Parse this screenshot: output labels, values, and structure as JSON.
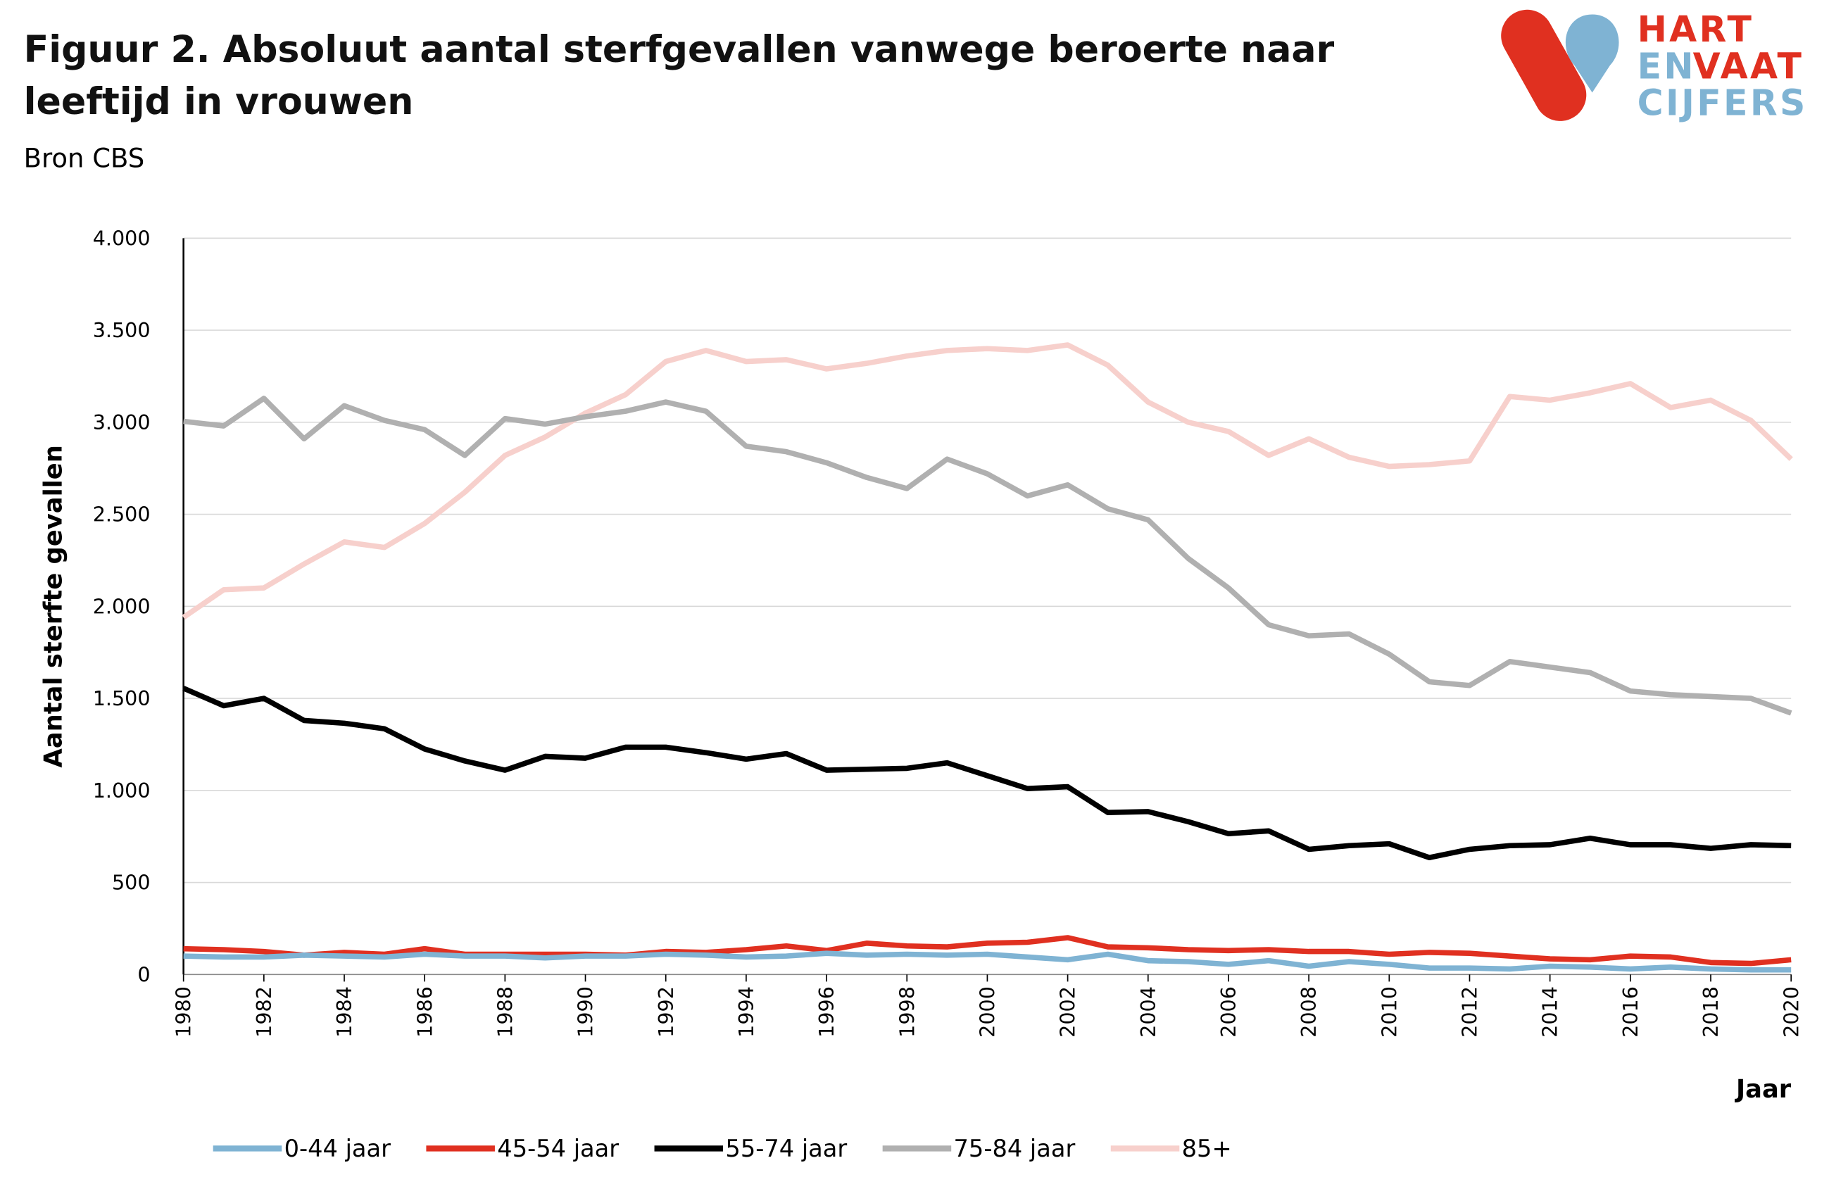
{
  "chart_data": {
    "type": "line",
    "title": "Figuur 2. Absoluut aantal sterfgevallen vanwege beroerte naar leeftijd in vrouwen",
    "subtitle": "Bron CBS",
    "ylabel": "Aantal sterfte gevallen",
    "xlabel": "Jaar",
    "logo": [
      "HART",
      "EN",
      "VAAT",
      "CIJFERS"
    ],
    "x": [
      1980,
      1981,
      1982,
      1983,
      1984,
      1985,
      1986,
      1987,
      1988,
      1989,
      1990,
      1991,
      1992,
      1993,
      1994,
      1995,
      1996,
      1997,
      1998,
      1999,
      2000,
      2001,
      2002,
      2003,
      2004,
      2005,
      2006,
      2007,
      2008,
      2009,
      2010,
      2011,
      2012,
      2013,
      2014,
      2015,
      2016,
      2017,
      2018,
      2019,
      2020
    ],
    "xlim": [
      1980,
      2020
    ],
    "xticks": [
      1980,
      1982,
      1984,
      1986,
      1988,
      1990,
      1992,
      1994,
      1996,
      1998,
      2000,
      2002,
      2004,
      2006,
      2008,
      2010,
      2012,
      2014,
      2016,
      2018,
      2020
    ],
    "ylim": [
      0,
      4000
    ],
    "yticks": [
      0,
      500,
      {
        "value": 1000,
        "label": "1.000"
      },
      {
        "value": 1500,
        "label": "1.500"
      },
      {
        "value": 2000,
        "label": "2.000"
      },
      {
        "value": 2500,
        "label": "2.500"
      },
      {
        "value": 3000,
        "label": "3.000"
      },
      {
        "value": 3500,
        "label": "3.500"
      },
      {
        "value": 4000,
        "label": "4.000"
      }
    ],
    "grid": true,
    "legend": "bottom",
    "series": [
      {
        "name": "0-44 jaar",
        "color": "#7fb3d3",
        "values": [
          100,
          95,
          95,
          105,
          100,
          95,
          110,
          100,
          100,
          90,
          100,
          100,
          110,
          105,
          95,
          100,
          115,
          105,
          110,
          105,
          110,
          95,
          80,
          110,
          75,
          70,
          55,
          75,
          45,
          70,
          55,
          35,
          35,
          30,
          45,
          40,
          30,
          40,
          30,
          25,
          25
        ]
      },
      {
        "name": "45-54 jaar",
        "color": "#e03020",
        "values": [
          140,
          135,
          125,
          105,
          120,
          110,
          140,
          110,
          110,
          110,
          110,
          105,
          125,
          120,
          135,
          155,
          130,
          170,
          155,
          150,
          170,
          175,
          200,
          150,
          145,
          135,
          130,
          135,
          125,
          125,
          110,
          120,
          115,
          100,
          85,
          80,
          100,
          95,
          65,
          60,
          80
        ]
      },
      {
        "name": "55-74 jaar",
        "color": "#000000",
        "values": [
          1555,
          1460,
          1500,
          1380,
          1365,
          1335,
          1225,
          1160,
          1110,
          1185,
          1175,
          1235,
          1235,
          1205,
          1170,
          1200,
          1110,
          1115,
          1120,
          1150,
          1080,
          1010,
          1020,
          880,
          885,
          830,
          765,
          780,
          680,
          700,
          710,
          635,
          680,
          700,
          705,
          740,
          705,
          705,
          685,
          705,
          700
        ]
      },
      {
        "name": "75-84 jaar",
        "color": "#b0b0b0",
        "values": [
          3005,
          2980,
          3130,
          2910,
          3090,
          3010,
          2960,
          2820,
          3020,
          2990,
          3030,
          3060,
          3110,
          3060,
          2870,
          2840,
          2780,
          2700,
          2640,
          2800,
          2720,
          2600,
          2660,
          2530,
          2470,
          2260,
          2100,
          1900,
          1840,
          1850,
          1740,
          1590,
          1570,
          1700,
          1670,
          1640,
          1540,
          1520,
          1510,
          1500,
          1420
        ]
      },
      {
        "name": "85+",
        "color": "#f7d0cc",
        "values": [
          1940,
          2090,
          2100,
          2230,
          2350,
          2320,
          2450,
          2620,
          2820,
          2920,
          3050,
          3150,
          3330,
          3390,
          3330,
          3340,
          3290,
          3320,
          3360,
          3390,
          3400,
          3390,
          3420,
          3310,
          3110,
          3000,
          2950,
          2820,
          2910,
          2810,
          2760,
          2770,
          2790,
          3140,
          3120,
          3160,
          3210,
          3080,
          3120,
          3010,
          2800
        ]
      }
    ]
  }
}
